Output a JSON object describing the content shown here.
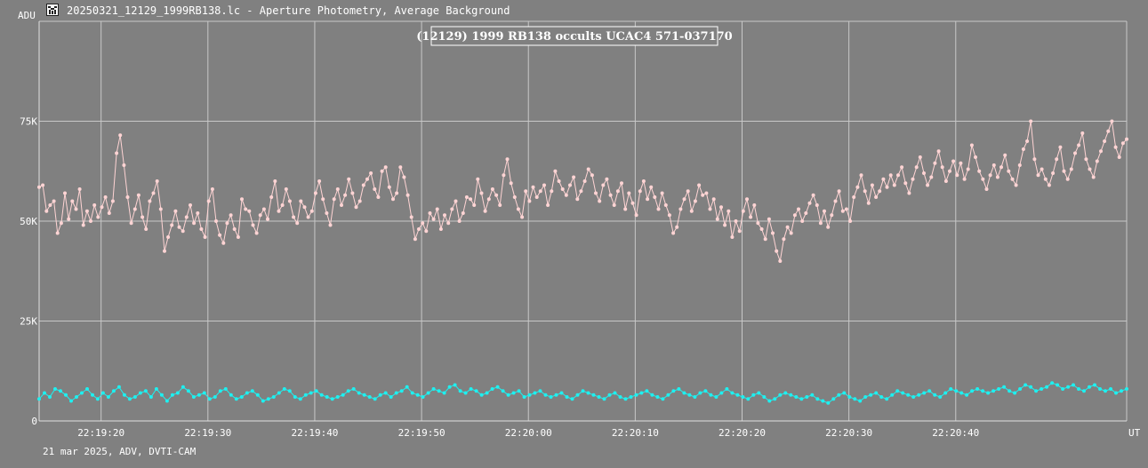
{
  "window": {
    "unit_label": "ADU",
    "title": "20250321_12129_1999RB138.lc - Aperture Photometry, Average Background",
    "file_icon": "light-curve-icon"
  },
  "footer": {
    "text": "21 mar 2025, ADV, DVTI-CAM"
  },
  "colors": {
    "background": "#808080",
    "grid": "#c8c8c8",
    "target_series": "#ffd4d4",
    "background_series": "#1ef0f0",
    "text": "#ffffff"
  },
  "chart_data": {
    "type": "line",
    "title": "(12129) 1999 RB138 occults UCAC4 571-037170",
    "xlabel": "UT",
    "ylabel": "ADU",
    "xlim": [
      "22:19:14.2",
      "22:20:56.0"
    ],
    "ylim": [
      0,
      100000
    ],
    "grid": true,
    "x_ticks": [
      "22:19:20",
      "22:19:30",
      "22:19:40",
      "22:19:50",
      "22:20:00",
      "22:20:10",
      "22:20:20",
      "22:20:30",
      "22:20:40"
    ],
    "y_ticks": [
      "0",
      "25K",
      "50K",
      "75K"
    ],
    "series": [
      {
        "color": "#ffd4d4",
        "x_start": "22:19:14.2",
        "x_end": "22:20:56.0",
        "values": [
          58500,
          59000,
          52500,
          54000,
          55000,
          47000,
          49500,
          57000,
          50500,
          55000,
          53000,
          58000,
          49000,
          52500,
          50000,
          54000,
          51000,
          53500,
          56000,
          52000,
          55000,
          67000,
          71500,
          64000,
          56000,
          49500,
          53000,
          56500,
          51000,
          48000,
          55000,
          57000,
          60000,
          53000,
          42500,
          46000,
          49000,
          52500,
          48500,
          47500,
          51000,
          54000,
          49500,
          52000,
          48000,
          46000,
          55000,
          58000,
          50000,
          46500,
          44500,
          49500,
          51500,
          48000,
          46000,
          55500,
          53000,
          52500,
          49000,
          47000,
          51500,
          53000,
          50500,
          56000,
          60000,
          52500,
          54000,
          58000,
          55000,
          51000,
          49500,
          55000,
          53500,
          51000,
          52500,
          57000,
          60000,
          55500,
          52000,
          49000,
          55500,
          58000,
          54000,
          56500,
          60500,
          57000,
          53500,
          55000,
          59000,
          60500,
          62000,
          58000,
          56000,
          62500,
          63500,
          58500,
          55500,
          57000,
          63500,
          61000,
          56500,
          51000,
          45500,
          48000,
          49500,
          47500,
          52000,
          50500,
          53000,
          48000,
          51500,
          49500,
          53000,
          55000,
          50000,
          52000,
          56000,
          55500,
          54000,
          60500,
          57000,
          52500,
          55500,
          58000,
          56500,
          54000,
          61500,
          65500,
          59500,
          56000,
          53000,
          51000,
          57500,
          55000,
          58500,
          56000,
          57500,
          59000,
          54000,
          57500,
          62500,
          60000,
          58000,
          56500,
          59000,
          61000,
          55500,
          57500,
          60000,
          63000,
          61500,
          57000,
          55000,
          59000,
          60500,
          56500,
          54000,
          57500,
          59500,
          53000,
          57000,
          54500,
          51500,
          57500,
          60000,
          55500,
          58500,
          56000,
          53000,
          57000,
          54000,
          51500,
          47000,
          48500,
          53000,
          55500,
          57500,
          52500,
          55000,
          59000,
          56500,
          57000,
          53000,
          55500,
          50500,
          53500,
          49000,
          52500,
          46000,
          50000,
          47500,
          52500,
          55500,
          51000,
          54000,
          49500,
          48000,
          45500,
          50500,
          47000,
          42500,
          40000,
          45500,
          48500,
          47000,
          51500,
          53000,
          50000,
          52000,
          54500,
          56500,
          54000,
          49500,
          52500,
          48500,
          51500,
          55000,
          57500,
          52500,
          53000,
          50000,
          56000,
          58500,
          61500,
          57500,
          54500,
          59000,
          56000,
          57500,
          60500,
          58500,
          61500,
          59000,
          61500,
          63500,
          59500,
          57000,
          60500,
          63500,
          66000,
          62000,
          59000,
          61000,
          64500,
          67500,
          63500,
          60000,
          62500,
          65000,
          61500,
          64500,
          60500,
          63000,
          69000,
          66000,
          62500,
          60500,
          58000,
          61500,
          64000,
          61000,
          63500,
          66500,
          62500,
          60500,
          59000,
          64000,
          68000,
          70000,
          75000,
          65500,
          61500,
          63000,
          60500,
          59000,
          62000,
          65500,
          68500,
          62500,
          60500,
          63000,
          67000,
          69000,
          72000,
          65500,
          63000,
          61000,
          65000,
          67500,
          70000,
          72500,
          75000,
          68500,
          66000,
          69500,
          70500
        ]
      },
      {
        "color": "#1ef0f0",
        "x_start": "22:19:14.2",
        "x_end": "22:20:56.0",
        "values": [
          5500,
          7000,
          6000,
          8000,
          7500,
          6500,
          5000,
          6000,
          7000,
          8000,
          6500,
          5500,
          7000,
          6000,
          7500,
          8500,
          6500,
          5500,
          6000,
          7000,
          7500,
          6000,
          8000,
          6500,
          5000,
          6500,
          7000,
          8500,
          7500,
          6000,
          6500,
          7000,
          5500,
          6000,
          7500,
          8000,
          6500,
          5500,
          6000,
          7000,
          7500,
          6500,
          5000,
          5500,
          6000,
          7000,
          8000,
          7500,
          6000,
          5500,
          6500,
          7000,
          7500,
          6500,
          6000,
          5500,
          6000,
          6500,
          7500,
          8000,
          7000,
          6500,
          6000,
          5500,
          6500,
          7000,
          6000,
          7000,
          7500,
          8500,
          7000,
          6500,
          6000,
          7000,
          8000,
          7500,
          7000,
          8500,
          9000,
          7500,
          7000,
          8000,
          7500,
          6500,
          7000,
          8000,
          8500,
          7500,
          6500,
          7000,
          7500,
          6000,
          6500,
          7000,
          7500,
          6500,
          6000,
          6500,
          7000,
          6000,
          5500,
          6500,
          7500,
          7000,
          6500,
          6000,
          5500,
          6500,
          7000,
          6000,
          5500,
          6000,
          6500,
          7000,
          7500,
          6500,
          6000,
          5500,
          6500,
          7500,
          8000,
          7000,
          6500,
          6000,
          7000,
          7500,
          6500,
          6000,
          7000,
          8000,
          7000,
          6500,
          6000,
          5500,
          6500,
          7000,
          6000,
          5000,
          5500,
          6500,
          7000,
          6500,
          6000,
          5500,
          6000,
          6500,
          5500,
          5000,
          4500,
          5500,
          6500,
          7000,
          6000,
          5500,
          5000,
          6000,
          6500,
          7000,
          6000,
          5500,
          6500,
          7500,
          7000,
          6500,
          6000,
          6500,
          7000,
          7500,
          6500,
          6000,
          7000,
          8000,
          7500,
          7000,
          6500,
          7500,
          8000,
          7500,
          7000,
          7500,
          8000,
          8500,
          7500,
          7000,
          8000,
          9000,
          8500,
          7500,
          8000,
          8500,
          9500,
          9000,
          8000,
          8500,
          9000,
          8000,
          7500,
          8500,
          9000,
          8000,
          7500,
          8000,
          7000,
          7500,
          8000
        ]
      }
    ]
  }
}
